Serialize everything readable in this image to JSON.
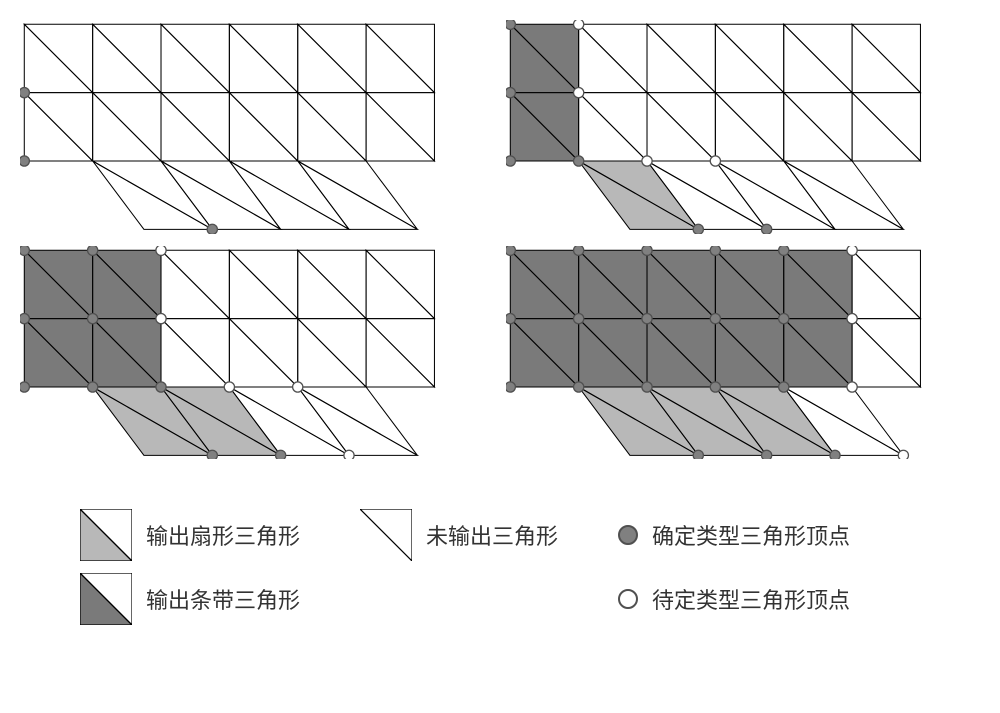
{
  "figure": {
    "cell": 80,
    "colors": {
      "background": "#ffffff",
      "stroke": "#000000",
      "strip_fill": "#7a7a7a",
      "fan_fill": "#b8b8b8",
      "vertex_fill_solid": "#808080",
      "vertex_fill_open": "#ffffff",
      "vertex_stroke": "#505050"
    },
    "stroke_width": 1.2,
    "vertex_radius": 6,
    "base_shape": {
      "top_rows": 2,
      "top_cols": 6,
      "bottom_cols": 4,
      "bottom_offset": 1,
      "shear": 60
    },
    "panels": [
      {
        "id": "p1",
        "strip_cells": [],
        "fan_cells": [],
        "solid_vertices": [
          [
            0,
            1
          ],
          [
            0,
            2
          ],
          [
            2,
            3
          ]
        ],
        "open_vertices": []
      },
      {
        "id": "p2",
        "strip_cells": [
          [
            0,
            0
          ],
          [
            0,
            1
          ]
        ],
        "fan_cells": [
          [
            1,
            2
          ]
        ],
        "solid_vertices": [
          [
            0,
            0
          ],
          [
            0,
            1
          ],
          [
            0,
            2
          ],
          [
            1,
            2
          ],
          [
            2,
            3
          ],
          [
            3,
            3
          ]
        ],
        "open_vertices": [
          [
            1,
            0
          ],
          [
            1,
            1
          ],
          [
            2,
            2
          ],
          [
            3,
            2
          ]
        ]
      },
      {
        "id": "p3",
        "strip_cells": [
          [
            0,
            0
          ],
          [
            1,
            0
          ],
          [
            0,
            1
          ],
          [
            1,
            1
          ]
        ],
        "fan_cells": [
          [
            1,
            2
          ],
          [
            2,
            2
          ]
        ],
        "solid_vertices": [
          [
            0,
            0
          ],
          [
            0,
            1
          ],
          [
            0,
            2
          ],
          [
            1,
            0
          ],
          [
            1,
            1
          ],
          [
            1,
            2
          ],
          [
            2,
            2
          ],
          [
            2,
            3
          ],
          [
            3,
            3
          ]
        ],
        "open_vertices": [
          [
            2,
            0
          ],
          [
            2,
            1
          ],
          [
            3,
            2
          ],
          [
            4,
            3
          ],
          [
            4,
            2
          ]
        ]
      },
      {
        "id": "p4",
        "strip_cells": [
          [
            0,
            0
          ],
          [
            1,
            0
          ],
          [
            2,
            0
          ],
          [
            3,
            0
          ],
          [
            4,
            0
          ],
          [
            0,
            1
          ],
          [
            1,
            1
          ],
          [
            2,
            1
          ],
          [
            3,
            1
          ],
          [
            4,
            1
          ]
        ],
        "fan_cells": [
          [
            1,
            2
          ],
          [
            2,
            2
          ],
          [
            3,
            2
          ]
        ],
        "solid_vertices": [
          [
            0,
            0
          ],
          [
            1,
            0
          ],
          [
            2,
            0
          ],
          [
            3,
            0
          ],
          [
            4,
            0
          ],
          [
            0,
            1
          ],
          [
            1,
            1
          ],
          [
            2,
            1
          ],
          [
            3,
            1
          ],
          [
            4,
            1
          ],
          [
            0,
            2
          ],
          [
            1,
            2
          ],
          [
            2,
            2
          ],
          [
            3,
            2
          ],
          [
            4,
            2
          ],
          [
            2,
            3
          ],
          [
            3,
            3
          ],
          [
            4,
            3
          ]
        ],
        "open_vertices": [
          [
            5,
            0
          ],
          [
            5,
            1
          ],
          [
            5,
            2
          ],
          [
            5,
            3
          ]
        ]
      }
    ]
  },
  "legend": {
    "fan_label": "输出扇形三角形",
    "strip_label": "输出条带三角形",
    "unoutput_label": "未输出三角形",
    "solid_vertex_label": "确定类型三角形顶点",
    "open_vertex_label": "待定类型三角形顶点"
  }
}
